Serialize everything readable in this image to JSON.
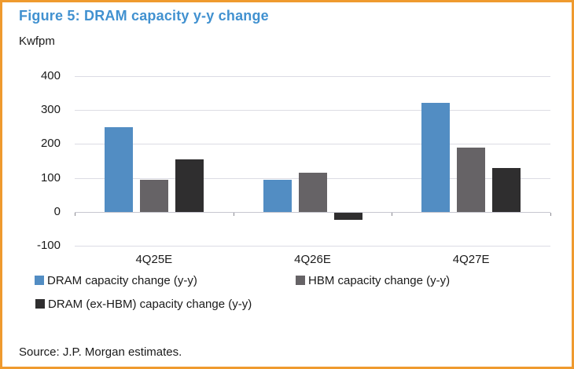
{
  "figure": {
    "title": "Figure 5: DRAM capacity y-y change",
    "unit_label": "Kwfpm",
    "source": "Source: J.P. Morgan estimates."
  },
  "colors": {
    "panel_border": "#ef9a2e",
    "title_text": "#4191d0",
    "gridline": "#dcdce4",
    "zero_line": "#c6c6cf",
    "series_blue": "#528dc3",
    "series_gray": "#666366",
    "series_dark": "#2f2e2f"
  },
  "chart_data": {
    "type": "bar",
    "title": "Figure 5: DRAM capacity y-y change",
    "ylabel": "Kwfpm",
    "categories": [
      "4Q25E",
      "4Q26E",
      "4Q27E"
    ],
    "series": [
      {
        "name": "DRAM capacity change (y-y)",
        "color": "#528dc3",
        "values": [
          250,
          95,
          320
        ]
      },
      {
        "name": "HBM capacity change (y-y)",
        "color": "#666366",
        "values": [
          95,
          115,
          190
        ]
      },
      {
        "name": "DRAM (ex-HBM) capacity change (y-y)",
        "color": "#2f2e2f",
        "values": [
          155,
          -20,
          130
        ]
      }
    ],
    "ylim": [
      -100,
      400
    ],
    "yticks": [
      400,
      300,
      200,
      100,
      0,
      -100
    ],
    "grid": true,
    "legend_position": "bottom"
  }
}
